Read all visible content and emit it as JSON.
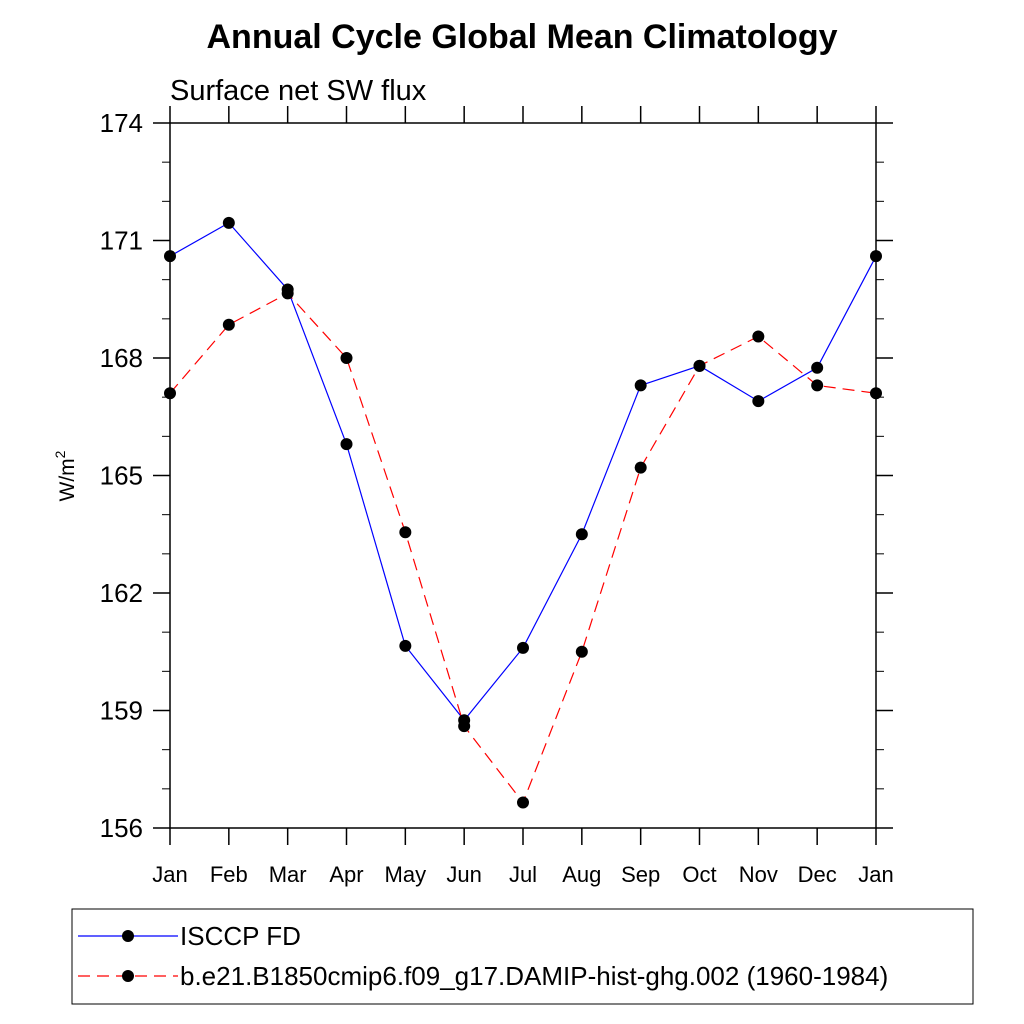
{
  "chart_data": {
    "type": "line",
    "title": "Annual Cycle Global Mean Climatology",
    "subtitle": "Surface net SW flux",
    "ylabel": "W/m",
    "ylabel_sup": "2",
    "ylim": [
      156,
      174
    ],
    "yticks": [
      156,
      159,
      162,
      165,
      168,
      171,
      174
    ],
    "categories": [
      "Jan",
      "Feb",
      "Mar",
      "Apr",
      "May",
      "Jun",
      "Jul",
      "Aug",
      "Sep",
      "Oct",
      "Nov",
      "Dec",
      "Jan"
    ],
    "grid": false,
    "legend_position": "bottom",
    "series": [
      {
        "name": "ISCCP FD",
        "color": "#0000ff",
        "dash": "solid",
        "values": [
          170.6,
          171.45,
          169.75,
          165.8,
          160.65,
          158.75,
          160.6,
          163.5,
          167.3,
          167.8,
          166.9,
          167.75,
          170.6
        ]
      },
      {
        "name": "b.e21.B1850cmip6.f09_g17.DAMIP-hist-ghg.002 (1960-1984)",
        "color": "#ff0000",
        "dash": "dashed",
        "values": [
          167.1,
          168.85,
          169.65,
          168.0,
          163.55,
          158.6,
          156.65,
          160.5,
          165.2,
          167.8,
          168.55,
          167.3,
          167.1
        ]
      }
    ]
  }
}
